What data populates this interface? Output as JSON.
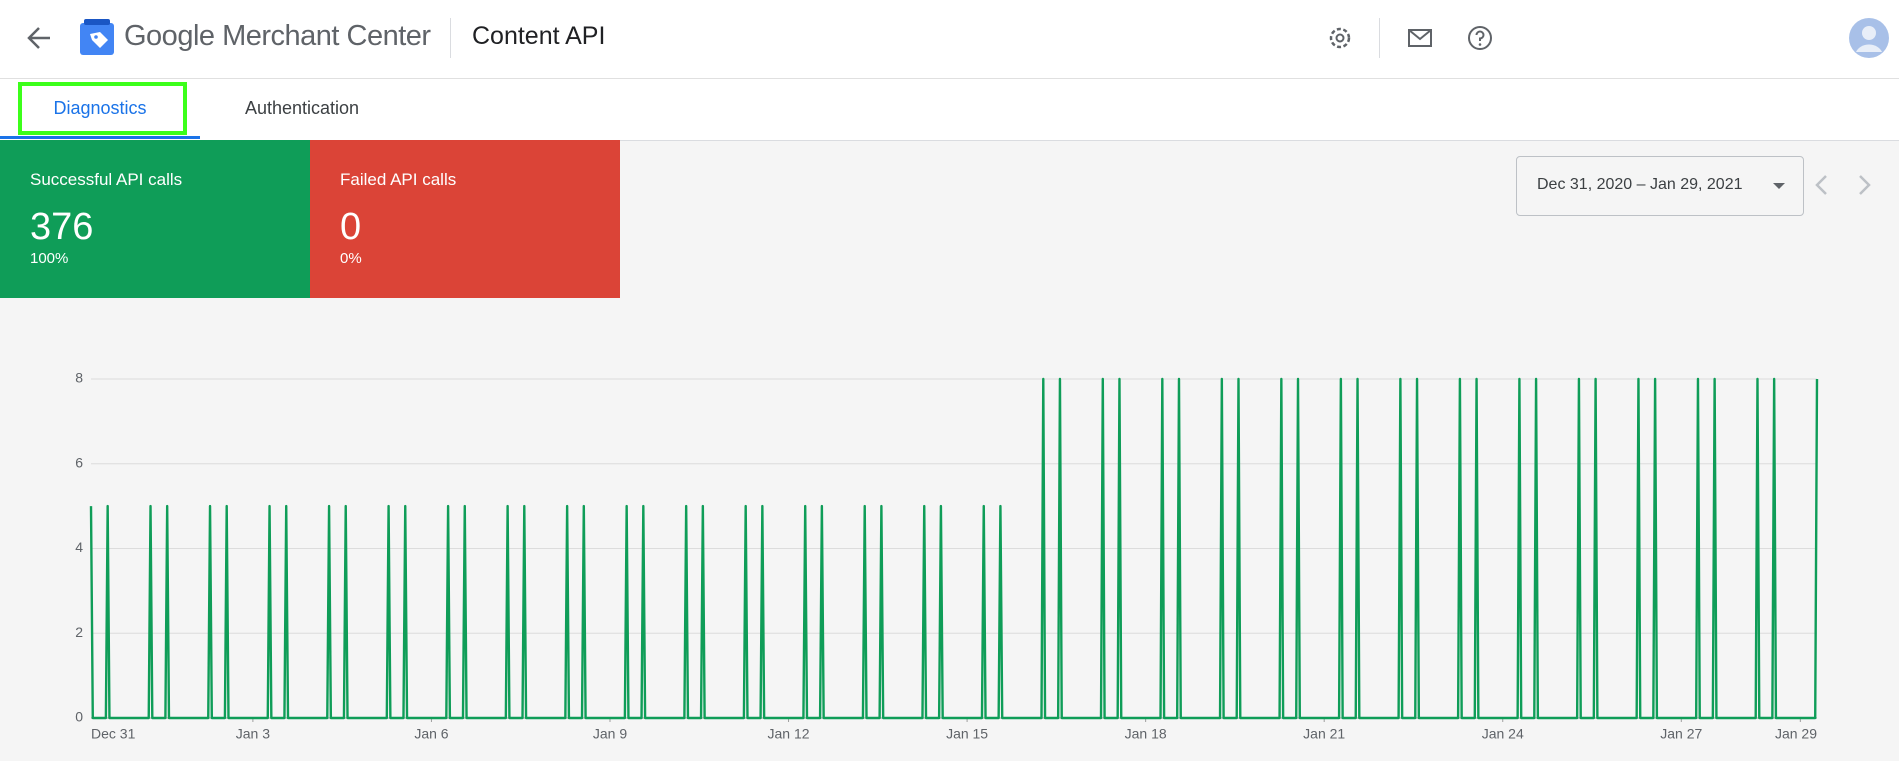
{
  "header": {
    "title": "Google Merchant Center",
    "page": "Content API"
  },
  "tabs": [
    "Diagnostics",
    "Authentication"
  ],
  "cards": [
    {
      "label": "Successful API calls",
      "value": 376,
      "percent": "100%"
    },
    {
      "label": "Failed API calls",
      "value": 0,
      "percent": "0%"
    }
  ],
  "date_range": "Dec 31, 2020 – Jan 29, 2021",
  "chart_data": {
    "type": "line",
    "color": "#0f9d58",
    "grid": true,
    "xlim": [
      0.28,
      29.28
    ],
    "xticks": [
      {
        "value": 0,
        "label": "Dec 31"
      },
      {
        "value": 3,
        "label": "Jan 3"
      },
      {
        "value": 6,
        "label": "Jan 6"
      },
      {
        "value": 9,
        "label": "Jan 9"
      },
      {
        "value": 12,
        "label": "Jan 12"
      },
      {
        "value": 15,
        "label": "Jan 15"
      },
      {
        "value": 18,
        "label": "Jan 18"
      },
      {
        "value": 21,
        "label": "Jan 21"
      },
      {
        "value": 24,
        "label": "Jan 24"
      },
      {
        "value": 27,
        "label": "Jan 27"
      },
      {
        "value": 29,
        "label": "Jan 29"
      }
    ],
    "ylim": [
      0,
      8
    ],
    "yticks": [
      0,
      2,
      4,
      6,
      8
    ],
    "x": [
      0.28,
      0.31,
      0.53,
      0.56,
      0.59,
      1.25,
      1.28,
      1.31,
      1.53,
      1.56,
      1.59,
      2.25,
      2.28,
      2.31,
      2.53,
      2.56,
      2.59,
      3.25,
      3.28,
      3.31,
      3.53,
      3.56,
      3.59,
      4.25,
      4.28,
      4.31,
      4.53,
      4.56,
      4.59,
      5.25,
      5.28,
      5.31,
      5.53,
      5.56,
      5.59,
      6.25,
      6.28,
      6.31,
      6.53,
      6.56,
      6.59,
      7.25,
      7.28,
      7.31,
      7.53,
      7.56,
      7.59,
      8.25,
      8.28,
      8.31,
      8.53,
      8.56,
      8.59,
      9.25,
      9.28,
      9.31,
      9.53,
      9.56,
      9.59,
      10.25,
      10.28,
      10.31,
      10.53,
      10.56,
      10.59,
      11.25,
      11.28,
      11.31,
      11.53,
      11.56,
      11.59,
      12.25,
      12.28,
      12.31,
      12.53,
      12.56,
      12.59,
      13.25,
      13.28,
      13.31,
      13.53,
      13.56,
      13.59,
      14.25,
      14.28,
      14.31,
      14.53,
      14.56,
      14.59,
      15.25,
      15.28,
      15.31,
      15.53,
      15.56,
      15.59,
      16.25,
      16.28,
      16.31,
      16.53,
      16.56,
      16.59,
      17.25,
      17.28,
      17.31,
      17.53,
      17.56,
      17.59,
      18.25,
      18.28,
      18.31,
      18.53,
      18.56,
      18.59,
      19.25,
      19.28,
      19.31,
      19.53,
      19.56,
      19.59,
      20.25,
      20.28,
      20.31,
      20.53,
      20.56,
      20.59,
      21.25,
      21.28,
      21.31,
      21.53,
      21.56,
      21.59,
      22.25,
      22.28,
      22.31,
      22.53,
      22.56,
      22.59,
      23.25,
      23.28,
      23.31,
      23.53,
      23.56,
      23.59,
      24.25,
      24.28,
      24.31,
      24.53,
      24.56,
      24.59,
      25.25,
      25.28,
      25.31,
      25.53,
      25.56,
      25.59,
      26.25,
      26.28,
      26.31,
      26.53,
      26.56,
      26.59,
      27.25,
      27.28,
      27.31,
      27.53,
      27.56,
      27.59,
      28.25,
      28.28,
      28.31,
      28.53,
      28.56,
      28.59,
      29.25,
      29.28
    ],
    "values": [
      5,
      0,
      0,
      5,
      0,
      0,
      5,
      0,
      0,
      5,
      0,
      0,
      5,
      0,
      0,
      5,
      0,
      0,
      5,
      0,
      0,
      5,
      0,
      0,
      5,
      0,
      0,
      5,
      0,
      0,
      5,
      0,
      0,
      5,
      0,
      0,
      5,
      0,
      0,
      5,
      0,
      0,
      5,
      0,
      0,
      5,
      0,
      0,
      5,
      0,
      0,
      5,
      0,
      0,
      5,
      0,
      0,
      5,
      0,
      0,
      5,
      0,
      0,
      5,
      0,
      0,
      5,
      0,
      0,
      5,
      0,
      0,
      5,
      0,
      0,
      5,
      0,
      0,
      5,
      0,
      0,
      5,
      0,
      0,
      5,
      0,
      0,
      5,
      0,
      0,
      5,
      0,
      0,
      5,
      0,
      0,
      8,
      0,
      0,
      8,
      0,
      0,
      8,
      0,
      0,
      8,
      0,
      0,
      8,
      0,
      0,
      8,
      0,
      0,
      8,
      0,
      0,
      8,
      0,
      0,
      8,
      0,
      0,
      8,
      0,
      0,
      8,
      0,
      0,
      8,
      0,
      0,
      8,
      0,
      0,
      8,
      0,
      0,
      8,
      0,
      0,
      8,
      0,
      0,
      8,
      0,
      0,
      8,
      0,
      0,
      8,
      0,
      0,
      8,
      0,
      0,
      8,
      0,
      0,
      8,
      0,
      0,
      8,
      0,
      0,
      8,
      0,
      0,
      8,
      0,
      0,
      8,
      0,
      0,
      8
    ]
  }
}
